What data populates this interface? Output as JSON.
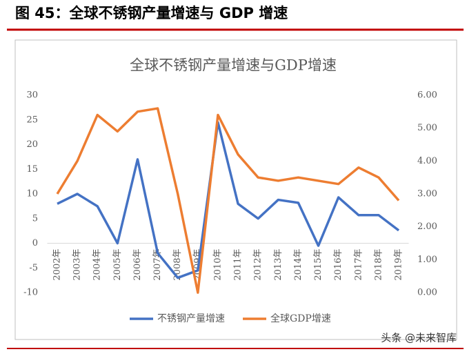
{
  "header": {
    "title": "图 45：全球不锈钢产量增速与 GDP 增速"
  },
  "chart_data": {
    "type": "line",
    "title": "全球不锈钢产量增速与GDP增速",
    "categories": [
      "2002年",
      "2003年",
      "2004年",
      "2005年",
      "2006年",
      "2007年",
      "2008年",
      "2009年",
      "2010年",
      "2011年",
      "2012年",
      "2013年",
      "2014年",
      "2015年",
      "2016年",
      "2017年",
      "2018年",
      "2019年"
    ],
    "series": [
      {
        "name": "不锈钢产量增速",
        "color": "#4472c4",
        "values": [
          8,
          10,
          7.5,
          0,
          17,
          -2,
          -7,
          -5.5,
          24.5,
          8,
          5,
          8.8,
          8.2,
          -0.5,
          9.3,
          5.7,
          5.7,
          2.6
        ]
      },
      {
        "name": "全球GDP增速",
        "color": "#ed7d31",
        "axis": "y2",
        "values": [
          3.0,
          4.0,
          5.4,
          4.9,
          5.5,
          5.6,
          3.0,
          0.0,
          5.4,
          4.2,
          3.5,
          3.4,
          3.5,
          3.4,
          3.3,
          3.8,
          3.5,
          2.8
        ]
      }
    ],
    "ylim": [
      -10,
      30
    ],
    "yticks": [
      -10,
      -5,
      0,
      5,
      10,
      15,
      20,
      25,
      30
    ],
    "y2lim": [
      0,
      6
    ],
    "y2ticks": [
      {
        "value": 0,
        "label": "0.00"
      },
      {
        "value": 1,
        "label": "1.00"
      },
      {
        "value": 2,
        "label": "2.00"
      },
      {
        "value": 3,
        "label": "3.00"
      },
      {
        "value": 4,
        "label": "4.00"
      },
      {
        "value": 5,
        "label": "5.00"
      },
      {
        "value": 6,
        "label": "6.00"
      }
    ],
    "grid": false,
    "legend": "bottom"
  },
  "watermark": "头条 @未来智库"
}
